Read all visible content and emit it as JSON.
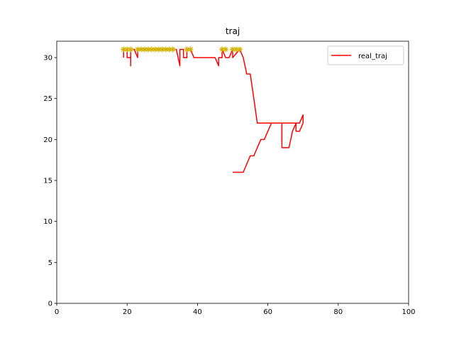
{
  "chart_data": {
    "type": "line",
    "title": "traj",
    "xlabel": "",
    "ylabel": "",
    "xlim": [
      0,
      100
    ],
    "ylim": [
      0,
      32
    ],
    "xticks": [
      0,
      20,
      40,
      60,
      80,
      100
    ],
    "yticks": [
      0,
      5,
      10,
      15,
      20,
      25,
      30
    ],
    "grid": false,
    "legend": {
      "placement": "top-right",
      "entries": [
        "real_traj"
      ]
    },
    "series": [
      {
        "name": "real_traj",
        "color": "#ff0000",
        "style": "line",
        "x": [
          19,
          19,
          20,
          20,
          21,
          21,
          21,
          22,
          23,
          23,
          24,
          26,
          28,
          30,
          32,
          34,
          35,
          35,
          36,
          36,
          37,
          37,
          38,
          39,
          40,
          42,
          44,
          45,
          46,
          46,
          47,
          47,
          48,
          49,
          50,
          50,
          52,
          53,
          54,
          55,
          56,
          57,
          58,
          60,
          61,
          62,
          64,
          64,
          66,
          67,
          68,
          68,
          69,
          70,
          70,
          69,
          64,
          61,
          60,
          59,
          58,
          57,
          56,
          55,
          54,
          53,
          52,
          51,
          50
        ],
        "y": [
          30,
          31,
          31,
          30,
          30,
          29,
          31,
          31,
          30,
          31,
          31,
          31,
          31,
          31,
          31,
          31,
          29,
          31,
          31,
          30,
          30,
          31,
          31,
          30,
          30,
          30,
          30,
          30,
          29,
          30,
          30,
          31,
          30,
          30,
          31,
          30,
          31,
          30,
          28,
          28,
          25,
          22,
          22,
          22,
          22,
          22,
          22,
          19,
          19,
          21,
          22,
          21,
          21,
          22,
          23,
          22,
          22,
          22,
          21,
          20,
          20,
          19,
          18,
          18,
          17,
          16,
          16,
          16,
          16
        ]
      },
      {
        "name": "",
        "color": "#d2b400",
        "style": "markers",
        "x": [
          19,
          20,
          21,
          23,
          24,
          25,
          26,
          27,
          28,
          29,
          30,
          31,
          32,
          33,
          37,
          38,
          47,
          48,
          50,
          51,
          52
        ],
        "y": [
          31,
          31,
          31,
          31,
          31,
          31,
          31,
          31,
          31,
          31,
          31,
          31,
          31,
          31,
          31,
          31,
          31,
          31,
          31,
          31,
          31
        ]
      }
    ]
  }
}
